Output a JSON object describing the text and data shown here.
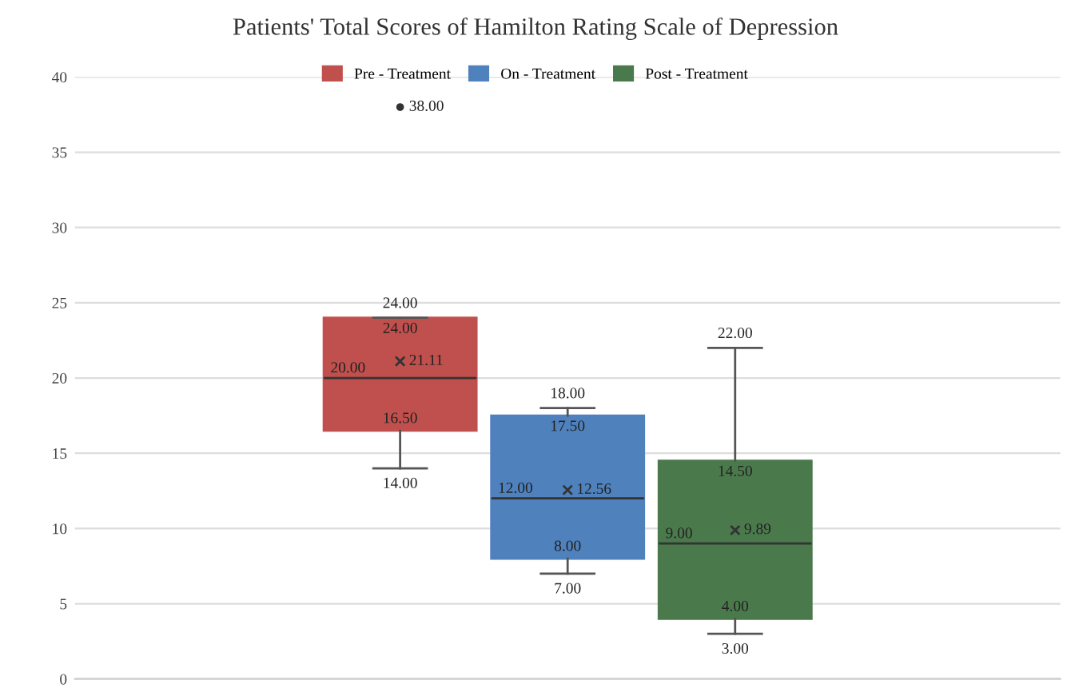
{
  "chart_data": {
    "type": "box",
    "title": "Patients' Total Scores of Hamilton Rating Scale of Depression",
    "categories": [
      null
    ],
    "series": [
      {
        "name": "Pre - Treatment",
        "color": "#c0504d",
        "boxes": [
          {
            "low": 14,
            "q1": 16.5,
            "median": 20,
            "q3": 24,
            "high": 24,
            "mean": 21.11,
            "outliers": [
              38
            ]
          }
        ]
      },
      {
        "name": "On - Treatment",
        "color": "#4f81bd",
        "boxes": [
          {
            "low": 7,
            "q1": 8,
            "median": 12,
            "q3": 17.5,
            "high": 18,
            "mean": 12.56
          }
        ]
      },
      {
        "name": "Post - Treatment",
        "color": "#4a7a4c",
        "boxes": [
          {
            "low": 3,
            "q1": 4,
            "median": 9,
            "q3": 14.5,
            "high": 22,
            "mean": 9.89
          }
        ]
      }
    ],
    "annotations": [
      {
        "text": "14.00",
        "y": 14
      },
      {
        "text": "16.50",
        "y": 16.5
      },
      {
        "text": "20.00",
        "y": 20
      },
      {
        "text": "24.00",
        "y": 24
      },
      {
        "text": "24.00",
        "y": 24
      },
      "21.11",
      "38.00",
      {
        "text": "7.00",
        "y": 7
      },
      {
        "text": "8.00",
        "y": 8
      },
      {
        "text": "12.00",
        "y": 12
      },
      {
        "text": "17.50",
        "y": 17.5
      },
      {
        "text": "18.00",
        "y": 18
      },
      "12.56",
      {
        "text": "3.00",
        "y": 3
      },
      {
        "text": "4.00",
        "y": 4
      },
      {
        "text": "9.00",
        "y": 9
      },
      {
        "text": "14.50",
        "y": 14.5
      },
      {
        "text": "22.00",
        "y": 22
      },
      "9.89"
    ],
    "ylim": [
      0,
      40
    ],
    "yticks": [
      0,
      5,
      10,
      15,
      20,
      25,
      30,
      35,
      40
    ],
    "grid": "y",
    "legend": "top"
  }
}
